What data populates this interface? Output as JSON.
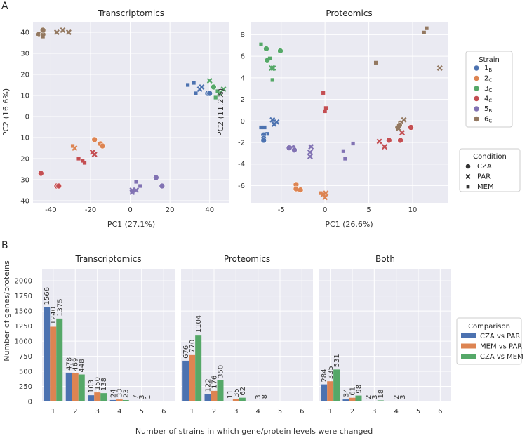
{
  "panel_a_label": "A",
  "panel_b_label": "B",
  "colors": {
    "s1": "#4c72b0",
    "s2": "#dd8452",
    "s3": "#55a868",
    "s4": "#c44e52",
    "s5": "#8172b3",
    "s6": "#937860"
  },
  "chart_data": [
    {
      "type": "scatter",
      "title": "Transcriptomics",
      "xlabel": "PC1 (27.1%)",
      "ylabel": "PC2 (16.6%)",
      "xlim": [
        -49,
        50
      ],
      "ylim": [
        -41,
        45
      ],
      "xticks": [
        -40,
        -20,
        0,
        20,
        40
      ],
      "yticks": [
        -40,
        -30,
        -20,
        -10,
        0,
        10,
        20,
        30,
        40
      ],
      "points": [
        {
          "x": -46,
          "y": 39,
          "s": "s6",
          "m": "o"
        },
        {
          "x": -44,
          "y": 39,
          "s": "s6",
          "m": "o"
        },
        {
          "x": -44,
          "y": 41,
          "s": "s6",
          "m": "o"
        },
        {
          "x": -44,
          "y": 38,
          "s": "s6",
          "m": "s"
        },
        {
          "x": -37,
          "y": 40,
          "s": "s6",
          "m": "x"
        },
        {
          "x": -34,
          "y": 41,
          "s": "s6",
          "m": "x"
        },
        {
          "x": -31,
          "y": 40,
          "s": "s6",
          "m": "x"
        },
        {
          "x": -45,
          "y": -27,
          "s": "s4",
          "m": "o"
        },
        {
          "x": -37,
          "y": -33,
          "s": "s4",
          "m": "o"
        },
        {
          "x": -36,
          "y": -33,
          "s": "s4",
          "m": "o"
        },
        {
          "x": -26,
          "y": -20,
          "s": "s4",
          "m": "s"
        },
        {
          "x": -24,
          "y": -21,
          "s": "s4",
          "m": "s"
        },
        {
          "x": -23,
          "y": -22,
          "s": "s4",
          "m": "s"
        },
        {
          "x": -19,
          "y": -17,
          "s": "s4",
          "m": "x"
        },
        {
          "x": -18,
          "y": -18,
          "s": "s4",
          "m": "x"
        },
        {
          "x": -29,
          "y": -14,
          "s": "s2",
          "m": "s"
        },
        {
          "x": -28,
          "y": -15,
          "s": "s2",
          "m": "x"
        },
        {
          "x": -18,
          "y": -11,
          "s": "s2",
          "m": "o"
        },
        {
          "x": -15,
          "y": -13,
          "s": "s2",
          "m": "o"
        },
        {
          "x": -14,
          "y": -14,
          "s": "s2",
          "m": "o"
        },
        {
          "x": 1,
          "y": -35,
          "s": "s5",
          "m": "x"
        },
        {
          "x": 1,
          "y": -36,
          "s": "s5",
          "m": "x"
        },
        {
          "x": 3,
          "y": -35,
          "s": "s5",
          "m": "x"
        },
        {
          "x": 3,
          "y": -31,
          "s": "s5",
          "m": "s"
        },
        {
          "x": 5,
          "y": -33,
          "s": "s5",
          "m": "s"
        },
        {
          "x": 13,
          "y": -29,
          "s": "s5",
          "m": "o"
        },
        {
          "x": 16,
          "y": -33,
          "s": "s5",
          "m": "o"
        },
        {
          "x": 29,
          "y": 15,
          "s": "s1",
          "m": "s"
        },
        {
          "x": 32,
          "y": 16,
          "s": "s1",
          "m": "s"
        },
        {
          "x": 33,
          "y": 11,
          "s": "s1",
          "m": "s"
        },
        {
          "x": 35,
          "y": 13,
          "s": "s1",
          "m": "x"
        },
        {
          "x": 36,
          "y": 14,
          "s": "s1",
          "m": "x"
        },
        {
          "x": 39,
          "y": 11,
          "s": "s1",
          "m": "o"
        },
        {
          "x": 40,
          "y": 11,
          "s": "s1",
          "m": "o"
        },
        {
          "x": 40,
          "y": 17,
          "s": "s3",
          "m": "x"
        },
        {
          "x": 42,
          "y": 14,
          "s": "s3",
          "m": "o"
        },
        {
          "x": 43,
          "y": 9,
          "s": "s3",
          "m": "s"
        },
        {
          "x": 44,
          "y": 12,
          "s": "s3",
          "m": "s"
        },
        {
          "x": 45,
          "y": 11,
          "s": "s3",
          "m": "x"
        },
        {
          "x": 47,
          "y": 13,
          "s": "s3",
          "m": "x"
        }
      ]
    },
    {
      "type": "scatter",
      "title": "Proteomics",
      "xlabel": "PC1 (26.6%)",
      "ylabel": "PC2 (11.2%)",
      "xlim": [
        -8.5,
        14
      ],
      "ylim": [
        -7.6,
        9.2
      ],
      "xticks": [
        -5,
        0,
        5,
        10
      ],
      "yticks": [
        -6,
        -4,
        -2,
        0,
        2,
        4,
        6,
        8
      ],
      "points": [
        {
          "x": -7.3,
          "y": 7.1,
          "s": "s3",
          "m": "s"
        },
        {
          "x": -6.7,
          "y": 6.7,
          "s": "s3",
          "m": "o"
        },
        {
          "x": -5.1,
          "y": 6.5,
          "s": "s3",
          "m": "o"
        },
        {
          "x": -6.6,
          "y": 5.6,
          "s": "s3",
          "m": "o"
        },
        {
          "x": -6.3,
          "y": 5.8,
          "s": "s3",
          "m": "s"
        },
        {
          "x": -6.1,
          "y": 4.9,
          "s": "s3",
          "m": "x"
        },
        {
          "x": -5.9,
          "y": 4.9,
          "s": "s3",
          "m": "x"
        },
        {
          "x": -6.0,
          "y": 3.8,
          "s": "s3",
          "m": "s"
        },
        {
          "x": -7.3,
          "y": -0.6,
          "s": "s1",
          "m": "s"
        },
        {
          "x": -6.9,
          "y": -0.6,
          "s": "s1",
          "m": "s"
        },
        {
          "x": -6.6,
          "y": -1.2,
          "s": "s1",
          "m": "s"
        },
        {
          "x": -6.0,
          "y": 0.1,
          "s": "s1",
          "m": "x"
        },
        {
          "x": -5.8,
          "y": -0.3,
          "s": "s1",
          "m": "x"
        },
        {
          "x": -5.5,
          "y": -0.1,
          "s": "s1",
          "m": "x"
        },
        {
          "x": -7.0,
          "y": -1.3,
          "s": "s1",
          "m": "o"
        },
        {
          "x": -7.0,
          "y": -1.6,
          "s": "s1",
          "m": "o"
        },
        {
          "x": -7.0,
          "y": -1.8,
          "s": "s1",
          "m": "o"
        },
        {
          "x": -4.1,
          "y": -2.5,
          "s": "s5",
          "m": "o"
        },
        {
          "x": -3.6,
          "y": -2.5,
          "s": "s5",
          "m": "o"
        },
        {
          "x": -3.5,
          "y": -2.7,
          "s": "s5",
          "m": "o"
        },
        {
          "x": -1.6,
          "y": -2.4,
          "s": "s5",
          "m": "x"
        },
        {
          "x": -1.7,
          "y": -2.9,
          "s": "s5",
          "m": "x"
        },
        {
          "x": -1.7,
          "y": -3.3,
          "s": "s5",
          "m": "x"
        },
        {
          "x": 2.1,
          "y": -2.8,
          "s": "s5",
          "m": "s"
        },
        {
          "x": 2.3,
          "y": -3.5,
          "s": "s5",
          "m": "s"
        },
        {
          "x": 3.2,
          "y": -2.1,
          "s": "s5",
          "m": "s"
        },
        {
          "x": -3.3,
          "y": -5.9,
          "s": "s2",
          "m": "o"
        },
        {
          "x": -3.3,
          "y": -6.3,
          "s": "s2",
          "m": "o"
        },
        {
          "x": -2.8,
          "y": -6.4,
          "s": "s2",
          "m": "o"
        },
        {
          "x": -0.5,
          "y": -6.7,
          "s": "s2",
          "m": "s"
        },
        {
          "x": -0.2,
          "y": -6.8,
          "s": "s2",
          "m": "x"
        },
        {
          "x": 0.1,
          "y": -6.7,
          "s": "s2",
          "m": "x"
        },
        {
          "x": 0,
          "y": -7.1,
          "s": "s2",
          "m": "x"
        },
        {
          "x": -0.2,
          "y": 2.6,
          "s": "s4",
          "m": "s"
        },
        {
          "x": 0.1,
          "y": 1.2,
          "s": "s4",
          "m": "s"
        },
        {
          "x": 0,
          "y": 0.9,
          "s": "s4",
          "m": "s"
        },
        {
          "x": 6.2,
          "y": -1.9,
          "s": "s4",
          "m": "x"
        },
        {
          "x": 6.8,
          "y": -2.4,
          "s": "s4",
          "m": "x"
        },
        {
          "x": 7.3,
          "y": -1.8,
          "s": "s4",
          "m": "o"
        },
        {
          "x": 8.6,
          "y": -1.8,
          "s": "s4",
          "m": "o"
        },
        {
          "x": 8.8,
          "y": -1.1,
          "s": "s4",
          "m": "x"
        },
        {
          "x": 9.8,
          "y": -0.6,
          "s": "s4",
          "m": "o"
        },
        {
          "x": 5.8,
          "y": 5.4,
          "s": "s6",
          "m": "s"
        },
        {
          "x": 8.3,
          "y": -0.6,
          "s": "s6",
          "m": "o"
        },
        {
          "x": 8.6,
          "y": -0.2,
          "s": "s6",
          "m": "o"
        },
        {
          "x": 8.5,
          "y": -0.4,
          "s": "s6",
          "m": "o"
        },
        {
          "x": 9.0,
          "y": 0.1,
          "s": "s6",
          "m": "x"
        },
        {
          "x": 8.4,
          "y": -0.7,
          "s": "s6",
          "m": "x"
        },
        {
          "x": 11.3,
          "y": 8.2,
          "s": "s6",
          "m": "s"
        },
        {
          "x": 11.6,
          "y": 8.6,
          "s": "s6",
          "m": "s"
        },
        {
          "x": 13.1,
          "y": 4.9,
          "s": "s6",
          "m": "x"
        }
      ]
    },
    {
      "type": "bar",
      "title": "Transcriptomics",
      "categories": [
        "1",
        "2",
        "3",
        "4",
        "5",
        "6"
      ],
      "series": [
        {
          "name": "CZA vs PAR",
          "values": [
            1566,
            478,
            103,
            24,
            7,
            0
          ],
          "labels": [
            "1566",
            "478",
            "103",
            "24",
            "7",
            ""
          ]
        },
        {
          "name": "MEM vs PAR",
          "values": [
            1240,
            469,
            150,
            33,
            3,
            0
          ],
          "labels": [
            "1240",
            "469",
            "150",
            "33",
            "3",
            ""
          ]
        },
        {
          "name": "CZA vs MEM",
          "values": [
            1375,
            448,
            138,
            23,
            1,
            0
          ],
          "labels": [
            "1375",
            "448",
            "138",
            "23",
            "1",
            ""
          ]
        }
      ],
      "ylim": [
        0,
        2200
      ],
      "yticks": [
        0,
        250,
        500,
        750,
        1000,
        1250,
        1500,
        1750,
        2000
      ]
    },
    {
      "type": "bar",
      "title": "Proteomics",
      "categories": [
        "1",
        "2",
        "3",
        "4",
        "5",
        "6"
      ],
      "series": [
        {
          "name": "CZA vs PAR",
          "values": [
            676,
            122,
            11,
            0,
            0,
            0
          ],
          "labels": [
            "676",
            "122",
            "11",
            "",
            "",
            ""
          ]
        },
        {
          "name": "MEM vs PAR",
          "values": [
            770,
            176,
            35,
            3,
            0,
            0
          ],
          "labels": [
            "770",
            "176",
            "35",
            "3",
            "",
            ""
          ]
        },
        {
          "name": "CZA vs MEM",
          "values": [
            1104,
            350,
            62,
            8,
            0,
            0
          ],
          "labels": [
            "1104",
            "350",
            "62",
            "8",
            "",
            ""
          ]
        }
      ],
      "ylim": [
        0,
        2200
      ]
    },
    {
      "type": "bar",
      "title": "Both",
      "categories": [
        "1",
        "2",
        "3",
        "4",
        "5",
        "6"
      ],
      "series": [
        {
          "name": "CZA vs PAR",
          "values": [
            284,
            34,
            2,
            0,
            0,
            0
          ],
          "labels": [
            "284",
            "34",
            "2",
            "",
            "",
            ""
          ]
        },
        {
          "name": "MEM vs PAR",
          "values": [
            335,
            61,
            3,
            2,
            0,
            0
          ],
          "labels": [
            "335",
            "61",
            "3",
            "2",
            "",
            ""
          ]
        },
        {
          "name": "CZA vs MEM",
          "values": [
            531,
            98,
            18,
            3,
            0,
            0
          ],
          "labels": [
            "531",
            "98",
            "18",
            "3",
            "",
            ""
          ]
        }
      ],
      "ylim": [
        0,
        2200
      ]
    }
  ],
  "bar_ylabel": "Number of genes/proteins",
  "bar_xlabel": "Number of strains in which gene/protein levels were changed",
  "legend_strain": {
    "title": "Strain",
    "items": [
      {
        "key": "s1",
        "num": "1",
        "sub": "B"
      },
      {
        "key": "s2",
        "num": "2",
        "sub": "C"
      },
      {
        "key": "s3",
        "num": "3",
        "sub": "C"
      },
      {
        "key": "s4",
        "num": "4",
        "sub": "C"
      },
      {
        "key": "s5",
        "num": "5",
        "sub": "B"
      },
      {
        "key": "s6",
        "num": "6",
        "sub": "C"
      }
    ]
  },
  "legend_condition": {
    "title": "Condition",
    "items": [
      {
        "m": "o",
        "label": "CZA"
      },
      {
        "m": "x",
        "label": "PAR"
      },
      {
        "m": "s",
        "label": "MEM"
      }
    ]
  },
  "legend_comparison": {
    "title": "Comparison",
    "items": [
      {
        "color": "#4c72b0",
        "label": "CZA vs PAR"
      },
      {
        "color": "#dd8452",
        "label": "MEM vs PAR"
      },
      {
        "color": "#55a868",
        "label": "CZA vs MEM"
      }
    ]
  }
}
